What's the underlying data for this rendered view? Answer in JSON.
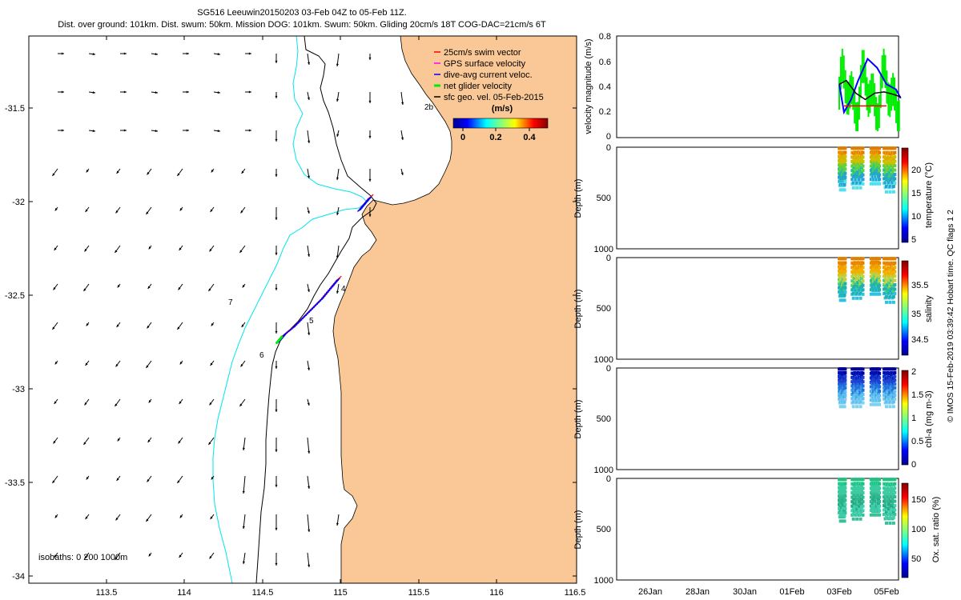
{
  "header": {
    "title": "SG516 Leeuwin20150203 03-Feb 04Z to 05-Feb 11Z.",
    "subtitle": "Dist. over ground: 101km. Dist. swum: 50km. Mission DOG: 101km. Swum: 50km. Gliding 20cm/s 18T COG-DAC=21cm/s 6T"
  },
  "colors": {
    "land": "#fac896",
    "isobath_200": "#000000",
    "isobath_1000": "#00e5ee",
    "swim_vector": "#ff0000",
    "gps_velocity": "#ff00ff",
    "dac_velocity": "#0000ff",
    "net_velocity": "#00ee00",
    "sfc_geo": "#000000"
  },
  "map": {
    "x_ticks": [
      "113.5",
      "114",
      "114.5",
      "115",
      "115.5",
      "116",
      "116.5"
    ],
    "y_ticks": [
      "-31.5",
      "-32",
      "-32.5",
      "-33",
      "-33.5",
      "-34"
    ],
    "isobaths_label": "isobaths: 0   200  1000m",
    "waypoints": [
      "2b",
      "4",
      "5",
      "6",
      "7"
    ],
    "legend": [
      "25cm/s swim vector",
      "GPS surface velocity",
      "dive-avg current veloc.",
      "net glider velocity",
      "sfc geo. vel. 05-Feb-2015"
    ],
    "colorbar": {
      "title": "(m/s)",
      "ticks": [
        "0",
        "0.2",
        "0.4"
      ]
    }
  },
  "side": {
    "date_ticks": [
      "26Jan",
      "28Jan",
      "30Jan",
      "01Feb",
      "03Feb",
      "05Feb"
    ],
    "velocity": {
      "ylabel": "velocity magnitude (m/s)",
      "yticks": [
        "0",
        "0.2",
        "0.4",
        "0.6",
        "0.8"
      ]
    },
    "depth_label": "Depth (m)",
    "depth_ticks": [
      "0",
      "500",
      "1000"
    ],
    "panels": [
      {
        "label": "temperature (°C)",
        "cbar_ticks": [
          "5",
          "10",
          "15",
          "20"
        ]
      },
      {
        "label": "salinity",
        "cbar_ticks": [
          "34.5",
          "35",
          "35.5"
        ]
      },
      {
        "label": "chl-a (mg m-3)",
        "cbar_ticks": [
          "0",
          "0.5",
          "1",
          "1.5",
          "2"
        ]
      },
      {
        "label": "Ox. sat. ratio (%)",
        "cbar_ticks": [
          "50",
          "100",
          "150"
        ]
      }
    ]
  },
  "footer_note": "© IMOS 15-Feb-2019 03:39:42 Hobart time. QC flags 1  2",
  "chart_data": [
    {
      "type": "map",
      "title": "SG516 Leeuwin20150203 03-Feb 04Z to 05-Feb 11Z.",
      "xlim": [
        113.0,
        116.5
      ],
      "ylim": [
        -34.05,
        -31.15
      ],
      "track": [
        [
          114.58,
          -32.78
        ],
        [
          114.62,
          -32.74
        ],
        [
          114.68,
          -32.7
        ],
        [
          114.74,
          -32.65
        ],
        [
          114.8,
          -32.6
        ],
        [
          114.86,
          -32.55
        ],
        [
          114.92,
          -32.49
        ],
        [
          114.97,
          -32.44
        ],
        [
          115.1,
          -32.08
        ],
        [
          115.14,
          -32.04
        ],
        [
          115.17,
          -32.01
        ]
      ]
    },
    {
      "type": "line",
      "ylabel": "velocity magnitude (m/s)",
      "ylim": [
        0,
        0.8
      ],
      "x_dates": [
        "26Jan",
        "28Jan",
        "30Jan",
        "01Feb",
        "03Feb",
        "05Feb"
      ],
      "series": [
        {
          "color": "blue",
          "x": [
            3.0,
            3.2,
            3.5,
            3.8,
            4.2,
            4.6,
            5.0,
            5.4,
            5.6
          ],
          "y": [
            0.42,
            0.2,
            0.3,
            0.45,
            0.62,
            0.55,
            0.42,
            0.38,
            0.31
          ]
        },
        {
          "color": "black",
          "x": [
            3.0,
            3.3,
            3.7,
            4.1,
            4.5,
            4.9,
            5.3,
            5.6
          ],
          "y": [
            0.42,
            0.45,
            0.35,
            0.3,
            0.35,
            0.36,
            0.34,
            0.32
          ]
        },
        {
          "color": "red",
          "x": [
            3.2,
            5.0
          ],
          "y": [
            0.25,
            0.25
          ]
        }
      ]
    }
  ]
}
